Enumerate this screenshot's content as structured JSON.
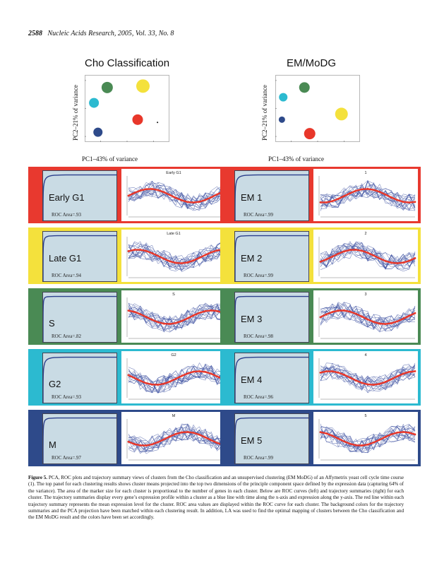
{
  "header": {
    "page": "2588",
    "journal": "Nucleic Acids Research, 2005, Vol. 33, No. 8"
  },
  "pca": [
    {
      "title": "Cho Classification",
      "xlabel": "PC1–43% of variance",
      "ylabel": "PC2–21% of variance",
      "points": [
        {
          "x": -1.5,
          "y": 1.5,
          "size": 16,
          "color": "#4a8a54"
        },
        {
          "x": 1.2,
          "y": 1.6,
          "size": 19,
          "color": "#f4e13c"
        },
        {
          "x": -2.5,
          "y": 0.4,
          "size": 14,
          "color": "#2cbad0"
        },
        {
          "x": 0.8,
          "y": -0.8,
          "size": 15,
          "color": "#e8372a"
        },
        {
          "x": -2.2,
          "y": -1.7,
          "size": 13,
          "color": "#2e4a8a"
        },
        {
          "x": 2.3,
          "y": -1.0,
          "size": 2,
          "color": "#111111"
        }
      ]
    },
    {
      "title": "EM/MoDG",
      "xlabel": "PC1–43% of variance",
      "ylabel": "PC2–21% of variance",
      "points": [
        {
          "x": -1.0,
          "y": 1.5,
          "size": 15,
          "color": "#4a8a54"
        },
        {
          "x": -2.6,
          "y": 0.8,
          "size": 12,
          "color": "#2cbad0"
        },
        {
          "x": -2.7,
          "y": -0.8,
          "size": 9,
          "color": "#2e4a8a"
        },
        {
          "x": 1.8,
          "y": -0.4,
          "size": 18,
          "color": "#f4e13c"
        },
        {
          "x": -0.6,
          "y": -1.8,
          "size": 16,
          "color": "#e8372a"
        }
      ]
    }
  ],
  "left_panels": [
    {
      "name": "Early G1",
      "roc": "ROC Area=.93",
      "title": "Early G1",
      "bg": "#e8392f"
    },
    {
      "name": "Late G1",
      "roc": "ROC Area=.94",
      "title": "Late G1",
      "bg": "#f4e13c"
    },
    {
      "name": "S",
      "roc": "ROC Area=.82",
      "title": "S",
      "bg": "#4a8a54"
    },
    {
      "name": "G2",
      "roc": "ROC Area=.93",
      "title": "G2",
      "bg": "#2cbad0"
    },
    {
      "name": "M",
      "roc": "ROC Area=.97",
      "title": "M",
      "bg": "#2e4a8a"
    }
  ],
  "right_panels": [
    {
      "name": "EM 1",
      "roc": "ROC Area=.99",
      "title": "1",
      "bg": "#e8392f"
    },
    {
      "name": "EM 2",
      "roc": "ROC Area=.99",
      "title": "2",
      "bg": "#f4e13c"
    },
    {
      "name": "EM 3",
      "roc": "ROC Area=.98",
      "title": "3",
      "bg": "#4a8a54"
    },
    {
      "name": "EM 4",
      "roc": "ROC Area=.96",
      "title": "4",
      "bg": "#2cbad0"
    },
    {
      "name": "EM 5",
      "roc": "ROC Area=.99",
      "title": "5",
      "bg": "#2e4a8a"
    }
  ],
  "caption": {
    "label": "Figure 5.",
    "text": " PCA, ROC plots and trajectory summary views of clusters from the Cho classification and an unsupervised clustering (EM MoDG) of an Affymetrix yeast cell cycle time course (1). The top panel for each clustering results shows cluster means projected into the top two dimensions of the principle component space defined by the expression data (capturing 64% of the variance). The area of the marker size for each cluster is proportional to the number of genes in each cluster. Below are ROC curves (left) and trajectory summaries (right) for each cluster. The trajectory summaries display every gene’s expression profile within a cluster as a blue line with time along the x-axis and expression along the y-axis. The red line within each trajectory summary represents the mean expression level for the cluster. ROC area values are displayed within the ROC curve for each cluster. The background colors for the trajectory summaries and the PCA projection have been matched within each clustering result. In addition, LA was used to find the optimal mapping of clusters between the Cho classification and the EM MoDG result and the colors have been set accordingly."
  }
}
